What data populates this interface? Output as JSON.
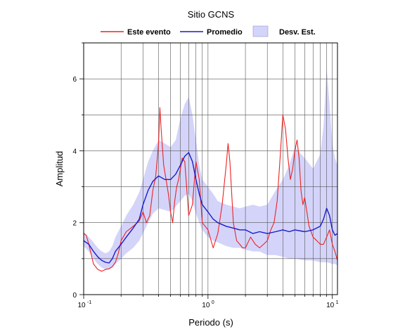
{
  "chart_data": {
    "type": "line",
    "title": "Sitio GCNS",
    "xlabel": "Periodo (s)",
    "ylabel": "Amplitud",
    "x_scale": "log",
    "xlim": [
      0.1,
      11
    ],
    "ylim": [
      0,
      7
    ],
    "grid": true,
    "legend_position": "top",
    "x_ticks": [
      {
        "value": 0.1,
        "mantissa": "10",
        "exponent": "-1"
      },
      {
        "value": 1,
        "mantissa": "10",
        "exponent": "0"
      },
      {
        "value": 10,
        "mantissa": "10",
        "exponent": "1"
      }
    ],
    "y_ticks": [
      "0",
      "2",
      "4",
      "6"
    ],
    "legend": [
      {
        "label": "Este evento",
        "kind": "line",
        "color": "#ee2222"
      },
      {
        "label": "Promedio",
        "kind": "line",
        "color": "#1a1acc"
      },
      {
        "label": "Desv. Est.",
        "kind": "band",
        "color": "#d4d4fa"
      }
    ],
    "series": [
      {
        "name": "Este evento",
        "color": "#ee2222",
        "x": [
          0.1,
          0.105,
          0.11,
          0.12,
          0.13,
          0.14,
          0.15,
          0.16,
          0.17,
          0.18,
          0.19,
          0.2,
          0.22,
          0.24,
          0.26,
          0.28,
          0.3,
          0.32,
          0.34,
          0.36,
          0.38,
          0.4,
          0.41,
          0.42,
          0.44,
          0.46,
          0.48,
          0.5,
          0.52,
          0.54,
          0.56,
          0.58,
          0.6,
          0.62,
          0.65,
          0.7,
          0.75,
          0.8,
          0.85,
          0.9,
          1.0,
          1.1,
          1.2,
          1.3,
          1.4,
          1.45,
          1.5,
          1.6,
          1.7,
          1.8,
          1.9,
          2.0,
          2.2,
          2.4,
          2.6,
          2.8,
          3.0,
          3.2,
          3.4,
          3.6,
          3.8,
          4.0,
          4.2,
          4.4,
          4.6,
          4.8,
          5.0,
          5.2,
          5.4,
          5.6,
          5.8,
          6.0,
          6.5,
          7.0,
          7.5,
          8.0,
          8.5,
          9.0,
          9.5,
          10.0,
          10.5,
          11.0
        ],
        "values": [
          1.7,
          1.65,
          1.4,
          0.85,
          0.7,
          0.65,
          0.7,
          0.72,
          0.78,
          0.9,
          1.15,
          1.5,
          1.75,
          1.85,
          1.95,
          2.05,
          2.3,
          2.0,
          2.2,
          2.9,
          3.3,
          4.2,
          5.2,
          4.6,
          3.6,
          3.2,
          2.8,
          2.3,
          2.0,
          2.6,
          3.0,
          3.2,
          3.5,
          3.8,
          3.7,
          2.2,
          2.5,
          3.7,
          3.2,
          2.0,
          1.8,
          1.3,
          1.7,
          2.5,
          3.6,
          4.2,
          3.7,
          2.0,
          1.5,
          1.4,
          1.3,
          1.3,
          1.6,
          1.4,
          1.3,
          1.4,
          1.5,
          1.8,
          2.0,
          2.6,
          3.8,
          5.0,
          4.6,
          3.8,
          3.2,
          3.5,
          4.0,
          4.3,
          3.8,
          2.9,
          2.5,
          2.7,
          1.9,
          1.6,
          1.5,
          1.4,
          1.4,
          1.6,
          1.8,
          1.4,
          1.2,
          0.95
        ]
      },
      {
        "name": "Promedio",
        "color": "#1a1acc",
        "x": [
          0.1,
          0.11,
          0.12,
          0.13,
          0.14,
          0.15,
          0.16,
          0.17,
          0.18,
          0.2,
          0.22,
          0.25,
          0.28,
          0.3,
          0.33,
          0.36,
          0.4,
          0.45,
          0.5,
          0.55,
          0.6,
          0.65,
          0.7,
          0.75,
          0.8,
          0.85,
          0.9,
          1.0,
          1.1,
          1.2,
          1.4,
          1.6,
          1.8,
          2.0,
          2.3,
          2.6,
          3.0,
          3.5,
          4.0,
          4.5,
          5.0,
          6.0,
          7.0,
          8.0,
          8.5,
          9.0,
          9.5,
          10.0,
          10.5,
          11.0
        ],
        "values": [
          1.5,
          1.4,
          1.2,
          1.05,
          0.95,
          0.9,
          0.88,
          1.0,
          1.2,
          1.4,
          1.6,
          1.85,
          2.1,
          2.5,
          2.9,
          3.15,
          3.3,
          3.2,
          3.2,
          3.35,
          3.6,
          3.85,
          3.95,
          3.7,
          3.2,
          2.8,
          2.5,
          2.3,
          2.1,
          2.0,
          1.9,
          1.85,
          1.8,
          1.8,
          1.7,
          1.75,
          1.7,
          1.75,
          1.8,
          1.75,
          1.8,
          1.75,
          1.8,
          1.9,
          2.1,
          2.4,
          2.2,
          1.8,
          1.65,
          1.7
        ]
      }
    ],
    "band": {
      "name": "Desv. Est.",
      "color": "#d4d4fa",
      "x": [
        0.1,
        0.11,
        0.12,
        0.13,
        0.14,
        0.15,
        0.16,
        0.17,
        0.18,
        0.2,
        0.22,
        0.25,
        0.28,
        0.3,
        0.33,
        0.36,
        0.4,
        0.45,
        0.5,
        0.55,
        0.6,
        0.65,
        0.7,
        0.75,
        0.8,
        0.85,
        0.9,
        1.0,
        1.1,
        1.2,
        1.4,
        1.6,
        1.8,
        2.0,
        2.3,
        2.6,
        3.0,
        3.5,
        4.0,
        4.5,
        5.0,
        6.0,
        7.0,
        8.0,
        8.5,
        9.0,
        9.5,
        10.0,
        10.5,
        11.0
      ],
      "lower": [
        1.35,
        1.2,
        1.0,
        0.85,
        0.75,
        0.7,
        0.7,
        0.75,
        0.85,
        1.0,
        1.15,
        1.3,
        1.5,
        1.7,
        2.0,
        2.25,
        2.4,
        2.35,
        2.3,
        2.45,
        2.6,
        2.75,
        2.8,
        2.6,
        2.25,
        2.0,
        1.8,
        1.6,
        1.5,
        1.45,
        1.35,
        1.3,
        1.3,
        1.25,
        1.2,
        1.2,
        1.1,
        1.1,
        1.05,
        1.0,
        1.0,
        0.95,
        0.95,
        0.9,
        0.9,
        0.9,
        0.88,
        0.85,
        0.85,
        0.82
      ],
      "upper": [
        1.75,
        1.6,
        1.45,
        1.3,
        1.2,
        1.15,
        1.2,
        1.35,
        1.6,
        1.9,
        2.2,
        2.5,
        2.85,
        3.2,
        3.7,
        4.0,
        4.3,
        4.2,
        4.1,
        4.3,
        4.9,
        5.3,
        5.5,
        5.0,
        4.3,
        3.6,
        3.2,
        3.0,
        2.8,
        2.6,
        2.5,
        2.45,
        2.4,
        2.45,
        2.5,
        2.45,
        2.5,
        2.9,
        3.2,
        3.6,
        4.1,
        3.8,
        3.5,
        3.9,
        4.7,
        6.3,
        5.3,
        4.2,
        3.8,
        3.6
      ]
    }
  }
}
